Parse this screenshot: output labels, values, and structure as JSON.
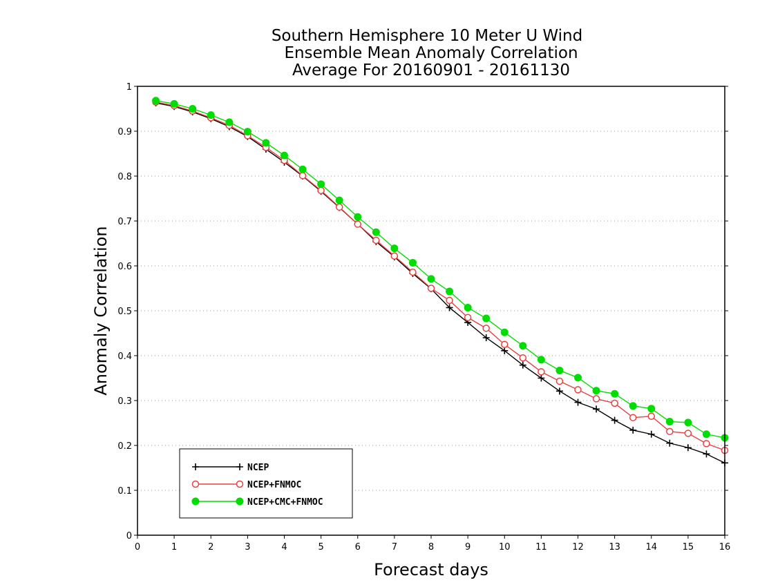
{
  "chart_data": {
    "type": "line",
    "title_lines": [
      "Southern Hemisphere 10 Meter U Wind",
      "Ensemble Mean Anomaly Correlation",
      "Average For 20160901 - 20161130"
    ],
    "xlabel": "Forecast days",
    "ylabel": "Anomaly Correlation",
    "xlim": [
      0,
      16
    ],
    "ylim": [
      0,
      1
    ],
    "x_ticks": [
      "0",
      "1",
      "2",
      "3",
      "4",
      "5",
      "6",
      "7",
      "8",
      "9",
      "10",
      "11",
      "12",
      "13",
      "14",
      "15",
      "16"
    ],
    "y_ticks": [
      "0",
      "0.1",
      "0.2",
      "0.3",
      "0.4",
      "0.5",
      "0.6",
      "0.7",
      "0.8",
      "0.9",
      "1"
    ],
    "grid": "horizontal dotted",
    "legend_position": "bottom-left",
    "x": [
      0.5,
      1,
      1.5,
      2,
      2.5,
      3,
      3.5,
      4,
      4.5,
      5,
      5.5,
      6,
      6.5,
      7,
      7.5,
      8,
      8.5,
      9,
      9.5,
      10,
      10.5,
      11,
      11.5,
      12,
      12.5,
      13,
      13.5,
      14,
      14.5,
      15,
      15.5,
      16
    ],
    "series": [
      {
        "name": "NCEP",
        "color": "#000000",
        "marker": "plus",
        "values": [
          0.963,
          0.955,
          0.943,
          0.928,
          0.91,
          0.888,
          0.86,
          0.831,
          0.8,
          0.766,
          0.73,
          0.693,
          0.654,
          0.62,
          0.583,
          0.549,
          0.507,
          0.474,
          0.44,
          0.411,
          0.379,
          0.35,
          0.321,
          0.296,
          0.281,
          0.256,
          0.234,
          0.225,
          0.205,
          0.195,
          0.181,
          0.161
        ]
      },
      {
        "name": "NCEP+FNMOC",
        "color": "#e84040",
        "marker": "open-circle",
        "values": [
          0.965,
          0.957,
          0.945,
          0.93,
          0.913,
          0.89,
          0.864,
          0.835,
          0.801,
          0.768,
          0.731,
          0.693,
          0.657,
          0.622,
          0.586,
          0.55,
          0.523,
          0.485,
          0.461,
          0.425,
          0.395,
          0.364,
          0.343,
          0.324,
          0.304,
          0.294,
          0.262,
          0.265,
          0.231,
          0.227,
          0.204,
          0.189
        ]
      },
      {
        "name": "NCEP+CMC+FNMOC",
        "color": "#00dd00",
        "marker": "filled-circle",
        "values": [
          0.968,
          0.961,
          0.95,
          0.936,
          0.92,
          0.899,
          0.874,
          0.846,
          0.815,
          0.782,
          0.746,
          0.709,
          0.675,
          0.639,
          0.607,
          0.571,
          0.543,
          0.507,
          0.483,
          0.452,
          0.422,
          0.391,
          0.367,
          0.351,
          0.322,
          0.315,
          0.288,
          0.282,
          0.253,
          0.251,
          0.225,
          0.217
        ]
      }
    ]
  }
}
